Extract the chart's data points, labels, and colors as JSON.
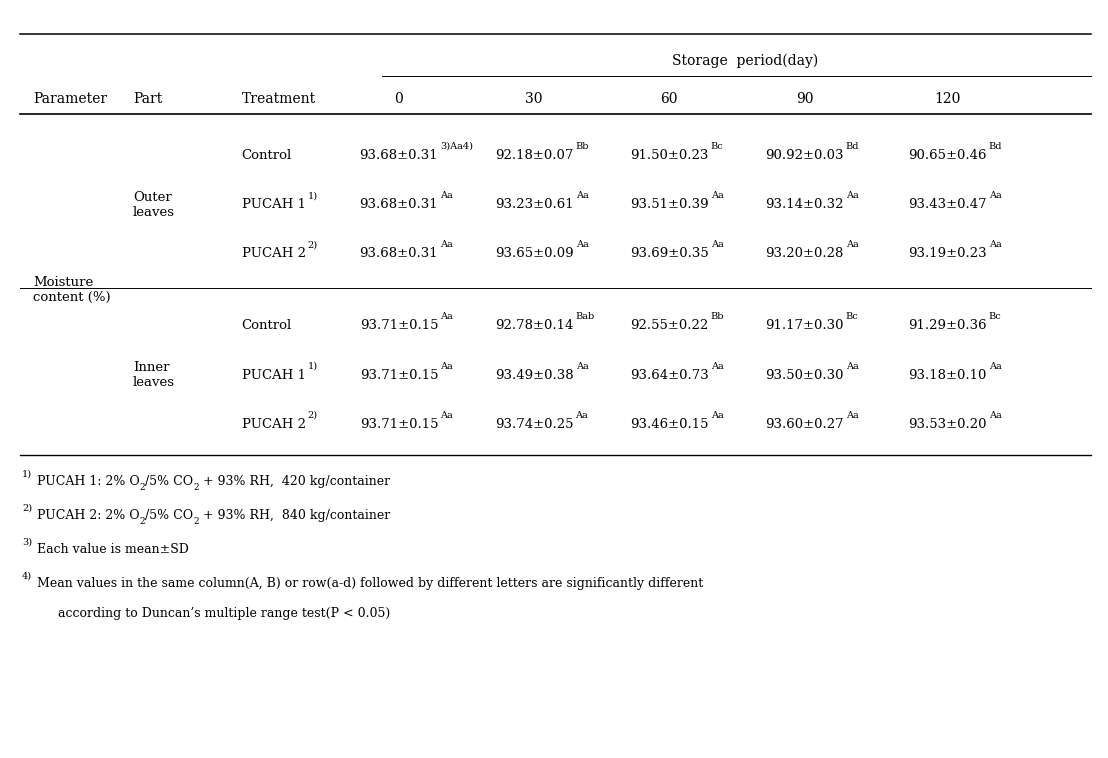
{
  "title": "Storage  period(day)",
  "storage_period_cols": [
    "0",
    "30",
    "60",
    "90",
    "120"
  ],
  "rows": [
    {
      "treatment_base": "Control",
      "treatment_sup": "",
      "vals_base": [
        "93.68±0.31",
        "92.18±0.07",
        "91.50±0.23",
        "90.92±0.03",
        "90.65±0.46"
      ],
      "vals_sup": [
        "3)Aa4)",
        "Bb",
        "Bc",
        "Bd",
        "Bd"
      ],
      "part_group": 0
    },
    {
      "treatment_base": "PUCAH 1",
      "treatment_sup": "1)",
      "vals_base": [
        "93.68±0.31",
        "93.23±0.61",
        "93.51±0.39",
        "93.14±0.32",
        "93.43±0.47"
      ],
      "vals_sup": [
        "Aa",
        "Aa",
        "Aa",
        "Aa",
        "Aa"
      ],
      "part_group": 0
    },
    {
      "treatment_base": "PUCAH 2",
      "treatment_sup": "2)",
      "vals_base": [
        "93.68±0.31",
        "93.65±0.09",
        "93.69±0.35",
        "93.20±0.28",
        "93.19±0.23"
      ],
      "vals_sup": [
        "Aa",
        "Aa",
        "Aa",
        "Aa",
        "Aa"
      ],
      "part_group": 0
    },
    {
      "treatment_base": "Control",
      "treatment_sup": "",
      "vals_base": [
        "93.71±0.15",
        "92.78±0.14",
        "92.55±0.22",
        "91.17±0.30",
        "91.29±0.36"
      ],
      "vals_sup": [
        "Aa",
        "Bab",
        "Bb",
        "Bc",
        "Bc"
      ],
      "part_group": 1
    },
    {
      "treatment_base": "PUCAH 1",
      "treatment_sup": "1)",
      "vals_base": [
        "93.71±0.15",
        "93.49±0.38",
        "93.64±0.73",
        "93.50±0.30",
        "93.18±0.10"
      ],
      "vals_sup": [
        "Aa",
        "Aa",
        "Aa",
        "Aa",
        "Aa"
      ],
      "part_group": 1
    },
    {
      "treatment_base": "PUCAH 2",
      "treatment_sup": "2)",
      "vals_base": [
        "93.71±0.15",
        "93.74±0.25",
        "93.46±0.15",
        "93.60±0.27",
        "93.53±0.20"
      ],
      "vals_sup": [
        "Aa",
        "Aa",
        "Aa",
        "Aa",
        "Aa"
      ],
      "part_group": 1
    }
  ],
  "fn1": "PUCAH 1: 2% O",
  "fn1_sub": "2",
  "fn1_rest": "/5% CO",
  "fn1_sub2": "2",
  "fn1_rest2": " + 93% RH,  420 kg/container",
  "fn2": "PUCAH 2: 2% O",
  "fn2_sub": "2",
  "fn2_rest": "/5% CO",
  "fn2_sub2": "2",
  "fn2_rest2": " + 93% RH,  840 kg/container",
  "fn3": "Each value is mean±SD",
  "fn4_line1": "Mean values in the same column(A, B) or row(a-d) followed by different letters are significantly different",
  "fn4_line2": "  according to Duncan’s multiple range test(P < 0.05)",
  "bg_color": "#ffffff",
  "font_size": 9.5,
  "sup_font_size": 7.0,
  "sub_font_size": 6.5
}
